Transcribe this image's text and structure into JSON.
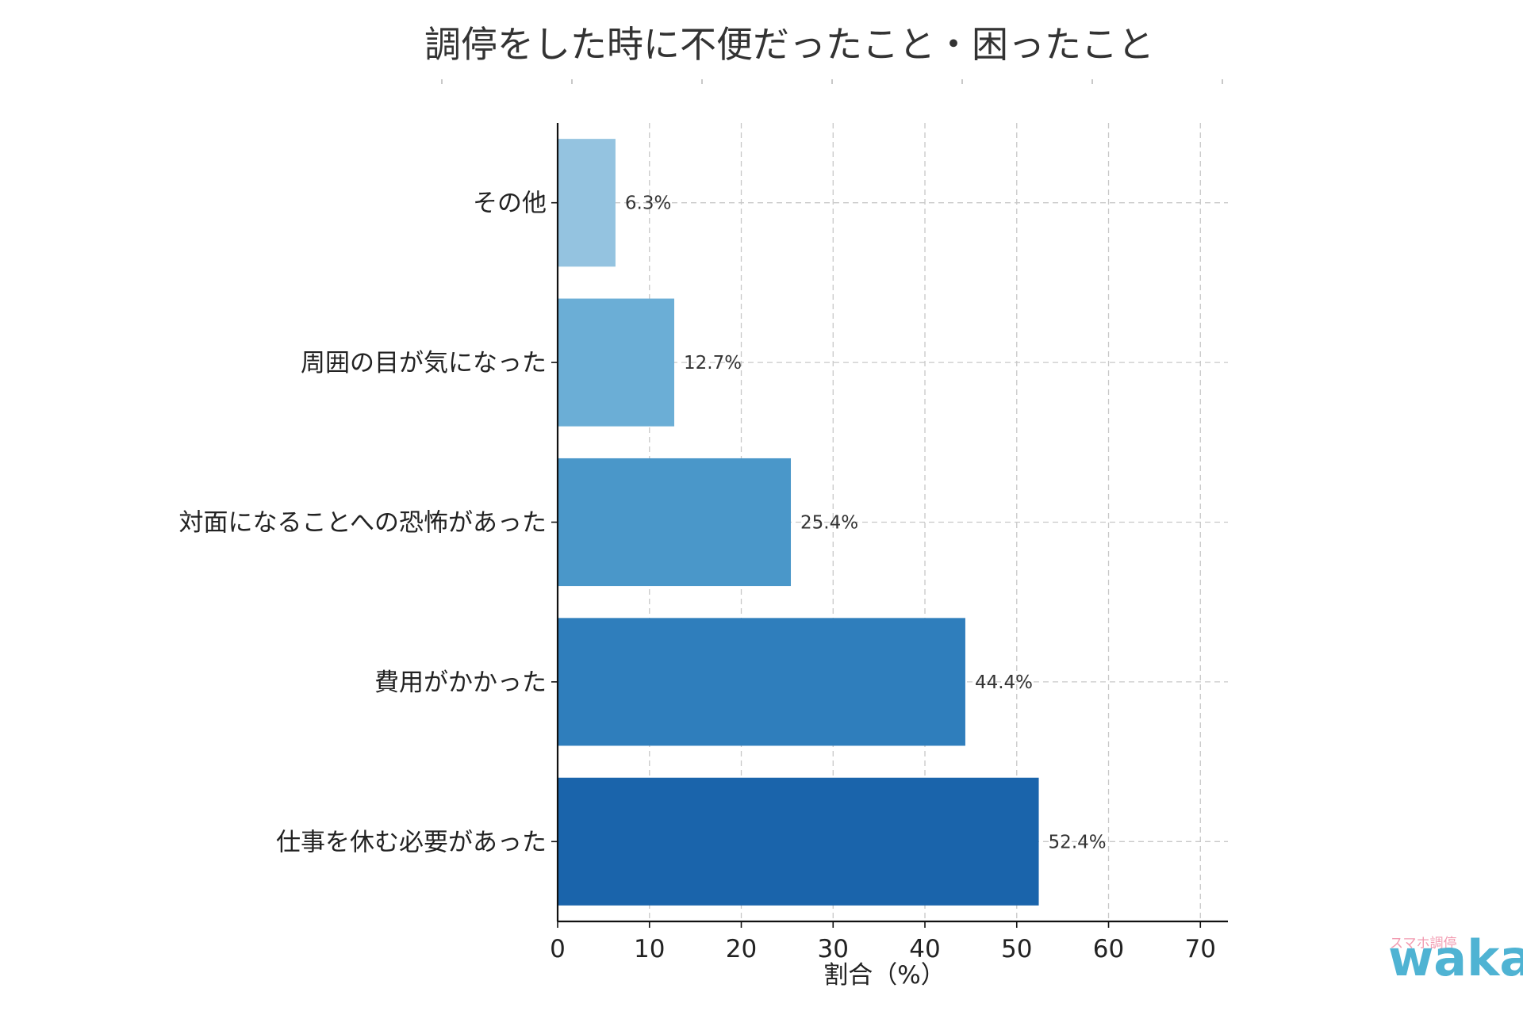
{
  "chart_data": {
    "type": "bar",
    "orientation": "horizontal",
    "title": "調停をした時に不便だったこと・困ったこと",
    "xlabel": "割合（%）",
    "ylabel": "",
    "xlim": [
      0,
      73
    ],
    "xticks": [
      0,
      10,
      20,
      30,
      40,
      50,
      60,
      70
    ],
    "grid": true,
    "categories": [
      "その他",
      "周囲の目が気になった",
      "対面になることへの恐怖があった",
      "費用がかかった",
      "仕事を休む必要があった"
    ],
    "values": [
      6.3,
      12.7,
      25.4,
      44.4,
      52.4
    ],
    "data_labels": [
      "6.3%",
      "12.7%",
      "25.4%",
      "44.4%",
      "52.4%"
    ],
    "bar_colors": [
      "#94c3e0",
      "#6baed6",
      "#4a97c9",
      "#2f7ebc",
      "#1a64ab"
    ]
  },
  "watermark": {
    "small_text": "スマホ調停",
    "main_text": "wakai",
    "colors": {
      "small": "#f29ab0",
      "main": "#4fb3d3"
    }
  }
}
